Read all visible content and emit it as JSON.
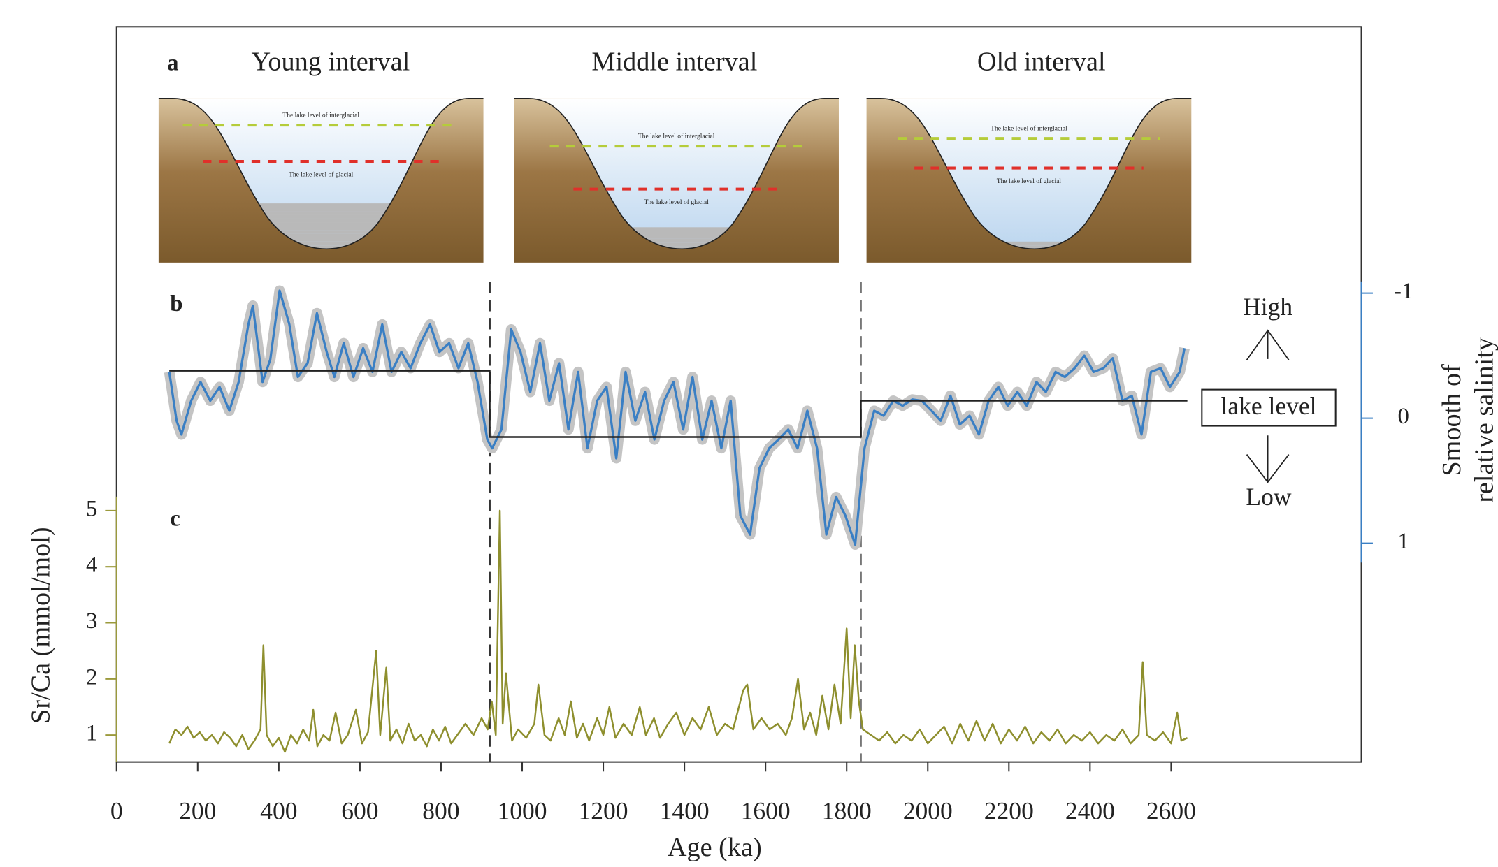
{
  "diagram": {
    "label": "a",
    "intervals": [
      {
        "title": "Young interval",
        "interglacial": "The lake level of interglacial",
        "glacial": "The lake level of glacial"
      },
      {
        "title": "Middle interval",
        "interglacial": "The lake level of interglacial",
        "glacial": "The lake level of glacial"
      },
      {
        "title": "Old interval",
        "interglacial": "The lake level of interglacial",
        "glacial": "The lake level of glacial"
      }
    ]
  },
  "chart_data": [
    {
      "type": "line",
      "label": "b",
      "xlim": [
        0,
        3069
      ],
      "ylim": [
        1.2,
        -1.2
      ],
      "yaxis": "right",
      "yticks": [
        -1,
        0,
        1
      ],
      "ylabel": [
        "Smooth of",
        "relative salinity"
      ],
      "axis_color": "#3a7fc4",
      "boundaries": [
        920,
        1835
      ],
      "annotations": {
        "high": "High",
        "middle": "lake level",
        "low": "Low"
      },
      "series": [
        {
          "color": "#3a7fc4",
          "band_color": "#c4c4c4",
          "x": [
            130,
            148,
            160,
            184,
            207,
            231,
            254,
            278,
            301,
            325,
            336,
            360,
            379,
            402,
            426,
            447,
            471,
            494,
            518,
            537,
            560,
            584,
            608,
            631,
            655,
            678,
            702,
            725,
            749,
            773,
            796,
            820,
            843,
            867,
            890,
            914,
            926,
            949,
            973,
            996,
            1020,
            1044,
            1067,
            1091,
            1114,
            1138,
            1161,
            1185,
            1208,
            1232,
            1255,
            1279,
            1303,
            1326,
            1350,
            1373,
            1397,
            1420,
            1444,
            1467,
            1491,
            1514,
            1538,
            1562,
            1585,
            1609,
            1632,
            1656,
            1679,
            1703,
            1727,
            1750,
            1774,
            1797,
            1821,
            1844,
            1868,
            1891,
            1915,
            1938,
            1962,
            1985,
            2009,
            2032,
            2056,
            2079,
            2103,
            2126,
            2150,
            2174,
            2197,
            2221,
            2244,
            2268,
            2291,
            2315,
            2338,
            2362,
            2386,
            2409,
            2433,
            2456,
            2480,
            2503,
            2527,
            2550,
            2574,
            2597,
            2621,
            2633
          ],
          "values": [
            -0.37,
            0.02,
            0.13,
            -0.14,
            -0.29,
            -0.14,
            -0.25,
            -0.06,
            -0.29,
            -0.75,
            -0.9,
            -0.29,
            -0.47,
            -1.02,
            -0.75,
            -0.33,
            -0.44,
            -0.84,
            -0.53,
            -0.33,
            -0.6,
            -0.33,
            -0.56,
            -0.37,
            -0.75,
            -0.37,
            -0.53,
            -0.4,
            -0.6,
            -0.75,
            -0.53,
            -0.6,
            -0.4,
            -0.6,
            -0.29,
            0.17,
            0.24,
            0.09,
            -0.71,
            -0.53,
            -0.21,
            -0.6,
            -0.14,
            -0.44,
            0.09,
            -0.37,
            0.24,
            -0.14,
            -0.25,
            0.32,
            -0.37,
            0.02,
            -0.21,
            0.17,
            -0.14,
            -0.29,
            0.09,
            -0.33,
            0.17,
            -0.14,
            0.24,
            -0.14,
            0.78,
            0.93,
            0.4,
            0.24,
            0.17,
            0.09,
            0.24,
            -0.06,
            0.24,
            0.93,
            0.63,
            0.78,
            1.01,
            0.24,
            -0.06,
            -0.02,
            -0.14,
            -0.1,
            -0.15,
            -0.14,
            -0.06,
            0.02,
            -0.18,
            0.05,
            -0.02,
            0.13,
            -0.14,
            -0.25,
            -0.1,
            -0.21,
            -0.1,
            -0.29,
            -0.21,
            -0.37,
            -0.33,
            -0.4,
            -0.5,
            -0.37,
            -0.4,
            -0.48,
            -0.14,
            -0.18,
            0.13,
            -0.37,
            -0.4,
            -0.25,
            -0.37,
            -0.56
          ]
        },
        {
          "color": "#222222",
          "x": [
            130,
            920,
            920,
            1835,
            1835,
            2640
          ],
          "values": [
            -0.38,
            -0.38,
            0.15,
            0.15,
            -0.14,
            -0.14
          ]
        }
      ]
    },
    {
      "type": "line",
      "label": "c",
      "xlim": [
        0,
        3069
      ],
      "ylim": [
        0.52,
        5.25
      ],
      "yaxis": "left",
      "yticks": [
        1,
        2,
        3,
        4,
        5
      ],
      "ylabel": "Sr/Ca (mmol/mol)",
      "axis_color": "#9b9a3c",
      "xlabel": "Age (ka)",
      "xticks": [
        0,
        200,
        400,
        600,
        800,
        1000,
        1200,
        1400,
        1600,
        1800,
        2000,
        2200,
        2400,
        2600
      ],
      "series": [
        {
          "color": "#8e8f2e",
          "x": [
            130,
            145,
            160,
            175,
            190,
            205,
            220,
            235,
            250,
            265,
            280,
            295,
            310,
            325,
            340,
            355,
            362,
            370,
            385,
            400,
            415,
            430,
            445,
            460,
            475,
            485,
            495,
            510,
            525,
            540,
            555,
            570,
            590,
            605,
            620,
            640,
            650,
            665,
            675,
            690,
            705,
            720,
            735,
            750,
            765,
            780,
            795,
            810,
            825,
            840,
            860,
            880,
            900,
            915,
            925,
            935,
            945,
            952,
            960,
            975,
            990,
            1010,
            1030,
            1040,
            1055,
            1070,
            1090,
            1105,
            1120,
            1135,
            1150,
            1165,
            1185,
            1200,
            1215,
            1230,
            1250,
            1270,
            1290,
            1305,
            1325,
            1340,
            1360,
            1380,
            1400,
            1420,
            1440,
            1460,
            1480,
            1500,
            1520,
            1545,
            1555,
            1570,
            1590,
            1610,
            1630,
            1650,
            1665,
            1680,
            1695,
            1710,
            1725,
            1740,
            1755,
            1770,
            1785,
            1800,
            1810,
            1820,
            1830,
            1840,
            1860,
            1880,
            1900,
            1920,
            1940,
            1960,
            1980,
            2000,
            2020,
            2040,
            2060,
            2080,
            2100,
            2120,
            2140,
            2160,
            2180,
            2200,
            2220,
            2240,
            2260,
            2280,
            2300,
            2320,
            2340,
            2360,
            2380,
            2400,
            2420,
            2440,
            2460,
            2480,
            2500,
            2520,
            2530,
            2540,
            2560,
            2580,
            2600,
            2615,
            2625,
            2640
          ],
          "values": [
            0.85,
            1.1,
            1.0,
            1.15,
            0.95,
            1.05,
            0.9,
            1.0,
            0.85,
            1.05,
            0.95,
            0.8,
            1.0,
            0.75,
            0.9,
            1.1,
            2.6,
            1.0,
            0.8,
            0.95,
            0.7,
            1.0,
            0.85,
            1.1,
            0.9,
            1.45,
            0.8,
            1.0,
            0.9,
            1.4,
            0.85,
            1.0,
            1.45,
            0.85,
            1.05,
            2.5,
            1.0,
            2.2,
            0.9,
            1.1,
            0.85,
            1.2,
            0.9,
            1.0,
            0.8,
            1.1,
            0.9,
            1.15,
            0.85,
            1.0,
            1.2,
            1.0,
            1.3,
            1.1,
            1.6,
            1.0,
            5.0,
            1.2,
            2.1,
            0.9,
            1.1,
            0.95,
            1.2,
            1.9,
            1.0,
            0.9,
            1.3,
            1.0,
            1.6,
            0.95,
            1.2,
            0.9,
            1.3,
            1.0,
            1.5,
            0.95,
            1.2,
            1.0,
            1.5,
            1.0,
            1.3,
            0.95,
            1.2,
            1.4,
            1.0,
            1.3,
            1.1,
            1.5,
            1.0,
            1.2,
            1.1,
            1.8,
            1.9,
            1.1,
            1.3,
            1.1,
            1.2,
            1.0,
            1.3,
            2.0,
            1.1,
            1.4,
            1.0,
            1.7,
            1.1,
            1.9,
            1.2,
            2.9,
            1.3,
            2.6,
            1.6,
            1.1,
            1.0,
            0.9,
            1.05,
            0.85,
            1.0,
            0.9,
            1.1,
            0.85,
            1.0,
            1.15,
            0.85,
            1.2,
            0.9,
            1.25,
            0.9,
            1.2,
            0.85,
            1.1,
            0.9,
            1.15,
            0.85,
            1.05,
            0.9,
            1.1,
            0.85,
            1.0,
            0.9,
            1.05,
            0.85,
            1.0,
            0.9,
            1.1,
            0.85,
            1.0,
            2.3,
            1.0,
            0.9,
            1.05,
            0.85,
            1.4,
            0.9,
            0.95
          ]
        }
      ]
    }
  ]
}
